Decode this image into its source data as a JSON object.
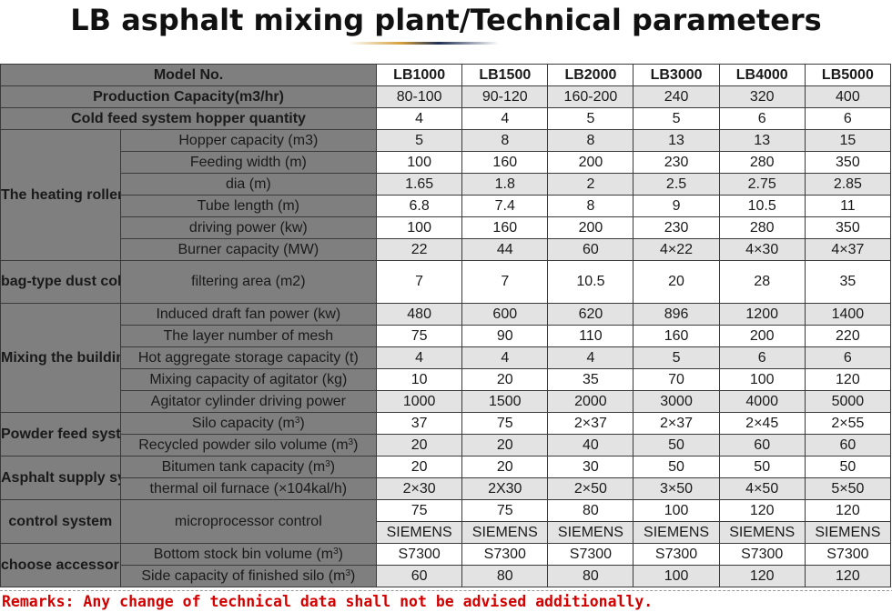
{
  "title": "LB asphalt mixing plant/Technical parameters",
  "header": {
    "label": "Model No.",
    "models": [
      "LB1000",
      "LB1500",
      "LB2000",
      "LB3000",
      "LB4000",
      "LB5000"
    ]
  },
  "production": {
    "label": "Production Capacity(m3/hr)",
    "values": [
      "80-100",
      "90-120",
      "160-200",
      "240",
      "320",
      "400"
    ]
  },
  "cold_feed": {
    "label": "Cold feed system hopper quantity",
    "values": [
      "4",
      "4",
      "5",
      "5",
      "6",
      "6"
    ]
  },
  "heating_roller": {
    "category": "The heating roller",
    "rows": [
      {
        "label": "Hopper capacity (m3)",
        "values": [
          "5",
          "8",
          "8",
          "13",
          "13",
          "15"
        ]
      },
      {
        "label": "Feeding width  (m)",
        "values": [
          "100",
          "160",
          "200",
          "230",
          "280",
          "350"
        ]
      },
      {
        "label": "dia  (m)",
        "values": [
          "1.65",
          "1.8",
          "2",
          "2.5",
          "2.75",
          "2.85"
        ]
      },
      {
        "label": "Tube length  (m)",
        "values": [
          "6.8",
          "7.4",
          "8",
          "9",
          "10.5",
          "11"
        ]
      },
      {
        "label": "driving power  (kw)",
        "values": [
          "100",
          "160",
          "200",
          "230",
          "280",
          "350"
        ]
      },
      {
        "label": "Burner capacity  (MW)",
        "values": [
          "22",
          "44",
          "60",
          "4×22",
          "4×30",
          "4×37"
        ]
      }
    ]
  },
  "dust_collector": {
    "category": "bag-type dust collector",
    "rows": [
      {
        "label": "filtering area  (m2)",
        "values": [
          "7",
          "7",
          "10.5",
          "20",
          "28",
          "35"
        ]
      }
    ]
  },
  "mixing_building": {
    "category": "Mixing the building",
    "rows": [
      {
        "label": "Induced draft fan power  (kw)",
        "values": [
          "480",
          "600",
          "620",
          "896",
          "1200",
          "1400"
        ]
      },
      {
        "label": "The layer number of mesh",
        "values": [
          "75",
          "90",
          "110",
          "160",
          "200",
          "220"
        ]
      },
      {
        "label": "Hot aggregate storage capacity  (t)",
        "values": [
          "4",
          "4",
          "4",
          "5",
          "6",
          "6"
        ]
      },
      {
        "label": "Mixing capacity of agitator  (kg)",
        "values": [
          "10",
          "20",
          "35",
          "70",
          "100",
          "120"
        ]
      },
      {
        "label": "Agitator cylinder driving power",
        "values": [
          "1000",
          "1500",
          "2000",
          "3000",
          "4000",
          "5000"
        ]
      }
    ]
  },
  "powder_feed": {
    "category": "Powder feed system",
    "rows": [
      {
        "label": "Silo capacity  (m",
        "unit_sup": "3",
        "label_end": ")",
        "values": [
          "37",
          "75",
          "2×37",
          "2×37",
          "2×45",
          "2×55"
        ]
      },
      {
        "label": "Recycled powder silo volume  (m",
        "unit_sup": "3",
        "label_end": ")",
        "values": [
          "20",
          "20",
          "40",
          "50",
          "60",
          "60"
        ]
      }
    ]
  },
  "asphalt_supply": {
    "category": "Asphalt supply system",
    "rows": [
      {
        "label": "Bitumen tank capacity  (m",
        "unit_sup": "3",
        "label_end": ")",
        "values": [
          "20",
          "20",
          "30",
          "50",
          "50",
          "50"
        ]
      },
      {
        "label": "thermal oil furnace  (×104kal/h)",
        "values": [
          "2×30",
          "2X30",
          "2×50",
          "3×50",
          "4×50",
          "5×50"
        ]
      }
    ]
  },
  "control_system": {
    "category": "control system",
    "label": "microprocessor control",
    "values_a": [
      "75",
      "75",
      "80",
      "100",
      "120",
      "120"
    ],
    "values_b": [
      "SIEMENS",
      "SIEMENS",
      "SIEMENS",
      "SIEMENS",
      "SIEMENS",
      "SIEMENS"
    ]
  },
  "accessories": {
    "category": "choose accessories",
    "rows": [
      {
        "label": "Bottom stock bin volume  (m",
        "unit_sup": "3",
        "label_end": ")",
        "values": [
          "S7300",
          "S7300",
          "S7300",
          "S7300",
          "S7300",
          "S7300"
        ]
      },
      {
        "label": "Side capacity of finished silo  (m",
        "unit_sup": "3",
        "label_end": ")",
        "values": [
          "60",
          "80",
          "80",
          "100",
          "120",
          "120"
        ]
      }
    ]
  },
  "remarks": "Remarks: Any change of technical data shall not be advised additionally.",
  "colors": {
    "header_bg": "#7f7f7f",
    "stripe_bg": "#e3e3e3",
    "remarks": "#d40000",
    "accent_gold": "#d6a03c",
    "accent_navy": "#1e2f55"
  }
}
